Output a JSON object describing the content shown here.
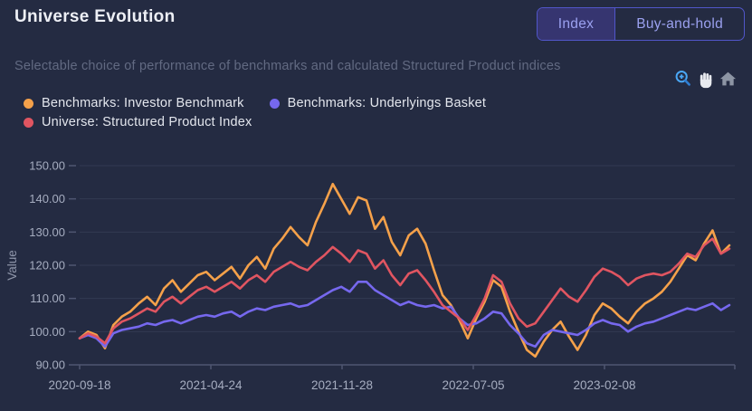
{
  "header": {
    "title": "Universe Evolution"
  },
  "toggle": {
    "options": [
      {
        "label": "Index",
        "selected": true
      },
      {
        "label": "Buy-and-hold",
        "selected": false
      }
    ]
  },
  "subtitle": "Selectable choice of performance of benchmarks and calculated Structured Product indices",
  "toolbar": {
    "icons": [
      {
        "name": "zoom-in-icon",
        "active": true
      },
      {
        "name": "pan-icon",
        "active": false
      },
      {
        "name": "home-icon",
        "active": false
      }
    ]
  },
  "colors": {
    "background": "#242b42",
    "accent_border": "#5156c9",
    "selected_fill": "#363570",
    "button_text": "#9ba1f0",
    "grid": "#323a52",
    "axis": "#4e5671",
    "tick_label": "#a6adc0",
    "zoom_icon_active": "#4aa7f5",
    "pan_icon": "#e8eaef",
    "home_icon": "#8d95a4"
  },
  "chart_data": {
    "type": "line",
    "title": "Universe Evolution",
    "xlabel": "",
    "ylabel": "Value",
    "ylim": [
      90,
      150
    ],
    "grid": true,
    "legend_position": "top-left",
    "yticks": [
      "90.00",
      "100.00",
      "110.00",
      "120.00",
      "130.00",
      "140.00",
      "150.00"
    ],
    "xticks": [
      "2020-09-18",
      "2021-04-24",
      "2021-11-28",
      "2022-07-05",
      "2023-02-08"
    ],
    "x": [
      "2020-09-18",
      "2020-10-02",
      "2020-10-16",
      "2020-10-30",
      "2020-11-13",
      "2020-11-27",
      "2020-12-11",
      "2020-12-25",
      "2021-01-08",
      "2021-01-22",
      "2021-02-05",
      "2021-02-19",
      "2021-03-05",
      "2021-03-19",
      "2021-04-02",
      "2021-04-16",
      "2021-04-30",
      "2021-05-14",
      "2021-05-28",
      "2021-06-11",
      "2021-06-25",
      "2021-07-09",
      "2021-07-23",
      "2021-08-06",
      "2021-08-20",
      "2021-09-03",
      "2021-09-17",
      "2021-10-01",
      "2021-10-15",
      "2021-10-29",
      "2021-11-12",
      "2021-11-26",
      "2021-12-10",
      "2021-12-24",
      "2022-01-07",
      "2022-01-21",
      "2022-02-04",
      "2022-02-18",
      "2022-03-04",
      "2022-03-18",
      "2022-04-01",
      "2022-04-15",
      "2022-04-29",
      "2022-05-13",
      "2022-05-27",
      "2022-06-10",
      "2022-06-24",
      "2022-07-08",
      "2022-07-22",
      "2022-08-05",
      "2022-08-19",
      "2022-09-02",
      "2022-09-16",
      "2022-09-30",
      "2022-10-14",
      "2022-10-28",
      "2022-11-11",
      "2022-11-25",
      "2022-12-09",
      "2022-12-23",
      "2023-01-06",
      "2023-01-20",
      "2023-02-03",
      "2023-02-17",
      "2023-03-03",
      "2023-03-17",
      "2023-03-31",
      "2023-04-14",
      "2023-04-28",
      "2023-05-12",
      "2023-05-26",
      "2023-06-09",
      "2023-06-23",
      "2023-07-07",
      "2023-07-21",
      "2023-08-04",
      "2023-08-18",
      "2023-09-01"
    ],
    "series": [
      {
        "name": "Benchmarks: Investor Benchmark",
        "color": "#f5a14a",
        "values": [
          98.0,
          100.0,
          99.0,
          95.0,
          102.0,
          104.5,
          106.0,
          108.5,
          110.5,
          108.0,
          113.0,
          115.5,
          112.0,
          114.5,
          117.0,
          118.0,
          115.5,
          117.5,
          119.5,
          116.0,
          120.0,
          122.5,
          119.0,
          125.0,
          128.0,
          131.5,
          128.5,
          126.0,
          133.0,
          138.5,
          144.5,
          140.0,
          135.5,
          140.5,
          139.5,
          131.0,
          134.5,
          127.0,
          123.0,
          129.0,
          131.0,
          126.5,
          118.5,
          111.0,
          108.0,
          103.5,
          98.0,
          104.0,
          109.0,
          115.5,
          113.5,
          106.0,
          100.0,
          94.5,
          92.5,
          97.0,
          100.5,
          103.0,
          98.5,
          94.5,
          99.0,
          105.0,
          108.5,
          107.0,
          104.5,
          102.5,
          106.0,
          108.5,
          110.0,
          112.0,
          115.0,
          119.0,
          123.0,
          121.5,
          126.5,
          130.5,
          123.5,
          126.0
        ]
      },
      {
        "name": "Benchmarks: Underlyings Basket",
        "color": "#7668ee",
        "values": [
          98.0,
          99.0,
          98.0,
          95.5,
          99.5,
          100.5,
          101.0,
          101.5,
          102.5,
          102.0,
          103.0,
          103.5,
          102.5,
          103.5,
          104.5,
          105.0,
          104.5,
          105.5,
          106.0,
          104.5,
          106.0,
          107.0,
          106.5,
          107.5,
          108.0,
          108.5,
          107.5,
          108.0,
          109.5,
          111.0,
          112.5,
          113.5,
          112.0,
          115.0,
          115.0,
          112.5,
          111.0,
          109.5,
          108.0,
          109.0,
          108.0,
          107.5,
          108.0,
          107.0,
          107.5,
          104.0,
          102.0,
          102.5,
          104.0,
          106.0,
          105.5,
          102.0,
          99.5,
          96.5,
          95.5,
          99.0,
          100.5,
          100.0,
          99.5,
          99.0,
          100.5,
          102.5,
          103.5,
          102.5,
          102.0,
          100.0,
          101.5,
          102.5,
          103.0,
          104.0,
          105.0,
          106.0,
          107.0,
          106.5,
          107.5,
          108.5,
          106.5,
          108.0
        ]
      },
      {
        "name": "Universe: Structured Product Index",
        "color": "#e05561",
        "values": [
          98.0,
          99.5,
          98.5,
          96.5,
          101.0,
          103.0,
          104.0,
          105.5,
          107.0,
          106.0,
          109.0,
          110.5,
          108.5,
          110.5,
          112.5,
          113.5,
          112.0,
          113.5,
          115.0,
          113.0,
          115.5,
          117.0,
          115.0,
          118.0,
          119.5,
          121.0,
          119.5,
          118.5,
          121.0,
          123.0,
          125.5,
          123.5,
          121.0,
          124.5,
          123.5,
          119.0,
          121.5,
          117.0,
          114.0,
          117.5,
          118.5,
          115.5,
          112.0,
          108.0,
          106.0,
          104.0,
          100.5,
          105.0,
          110.0,
          117.0,
          115.0,
          108.5,
          104.0,
          101.5,
          102.5,
          106.0,
          109.5,
          113.0,
          110.5,
          109.0,
          112.5,
          116.5,
          119.0,
          118.0,
          116.5,
          114.0,
          116.0,
          117.0,
          117.5,
          117.0,
          118.0,
          120.5,
          123.5,
          122.5,
          126.0,
          128.0,
          123.5,
          125.0
        ]
      }
    ]
  }
}
